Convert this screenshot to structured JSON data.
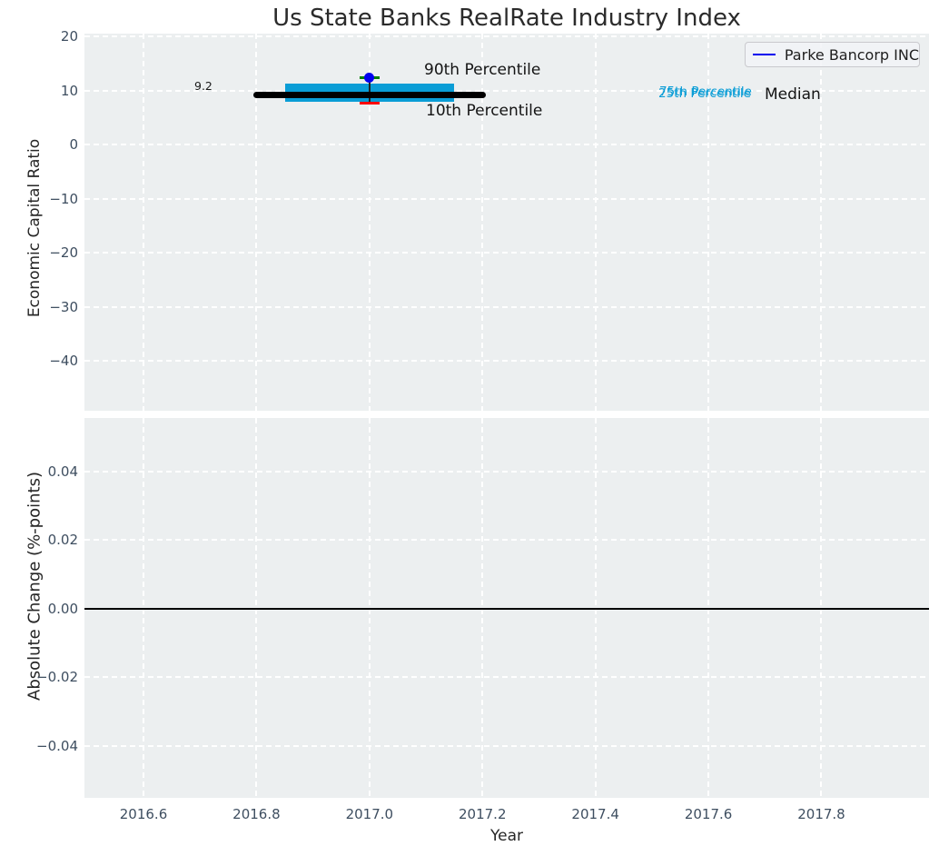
{
  "title": "Us State Banks RealRate Industry Index",
  "legend": {
    "label": "Parke Bancorp INC",
    "line_color": "#0000ee"
  },
  "annotations": {
    "p90_label": "90th Percentile",
    "p10_label": "10th Percentile",
    "p75_label": "75th Percentile",
    "p25_label": "25th Percentile",
    "median_label": "Median",
    "median_value_label": "9.2"
  },
  "chart_data": [
    {
      "type": "box",
      "title": "Us State Banks RealRate Industry Index",
      "ylabel": "Economic Capital Ratio",
      "xlim": [
        2016.4955,
        2017.9905
      ],
      "ylim": [
        -49.2,
        20.5
      ],
      "grid": true,
      "yticks": [
        {
          "v": 20,
          "label": "20"
        },
        {
          "v": 10,
          "label": "10"
        },
        {
          "v": 0,
          "label": "0"
        },
        {
          "v": -10,
          "label": "−10"
        },
        {
          "v": -20,
          "label": "−20"
        },
        {
          "v": -30,
          "label": "−30"
        },
        {
          "v": -40,
          "label": "−40"
        }
      ],
      "xticks": [
        {
          "v": 2016.6,
          "label": "2016.6"
        },
        {
          "v": 2016.8,
          "label": "2016.8"
        },
        {
          "v": 2017.0,
          "label": "2017.0"
        },
        {
          "v": 2017.2,
          "label": "2017.2"
        },
        {
          "v": 2017.4,
          "label": "2017.4"
        },
        {
          "v": 2017.6,
          "label": "2017.6"
        },
        {
          "v": 2017.8,
          "label": "2017.8"
        }
      ],
      "box": {
        "x": 2017.0,
        "x_box_span": [
          2016.85,
          2017.15
        ],
        "x_median_span": [
          2016.8,
          2017.2
        ],
        "p10": 7.6,
        "p25": 7.9,
        "median": 9.2,
        "p75": 11.2,
        "p90": 12.3,
        "colors": {
          "box": "#0a9dd6",
          "median": "#000000",
          "cap_top": "#007f00",
          "cap_bottom": "#ff0000",
          "whisker": "#222222"
        }
      },
      "company_point": {
        "name": "Parke Bancorp INC",
        "x": 2017.0,
        "y": 12.3,
        "color": "#0000ee"
      },
      "legend_position": "upper right"
    },
    {
      "type": "line",
      "ylabel": "Absolute Change (%-points)",
      "xlabel": "Year",
      "xlim": [
        2016.4955,
        2017.9905
      ],
      "ylim": [
        -0.0552,
        0.0555
      ],
      "grid": true,
      "yticks": [
        {
          "v": 0.04,
          "label": "0.04"
        },
        {
          "v": 0.02,
          "label": "0.02"
        },
        {
          "v": 0.0,
          "label": "0.00"
        },
        {
          "v": -0.02,
          "label": "−0.02"
        },
        {
          "v": -0.04,
          "label": "−0.04"
        }
      ],
      "xticks": [
        {
          "v": 2016.6,
          "label": "2016.6"
        },
        {
          "v": 2016.8,
          "label": "2016.8"
        },
        {
          "v": 2017.0,
          "label": "2017.0"
        },
        {
          "v": 2017.2,
          "label": "2017.2"
        },
        {
          "v": 2017.4,
          "label": "2017.4"
        },
        {
          "v": 2017.6,
          "label": "2017.6"
        },
        {
          "v": 2017.8,
          "label": "2017.8"
        }
      ],
      "series": [
        {
          "name": "zero-line",
          "y": 0.0,
          "color": "#000000"
        }
      ]
    }
  ]
}
